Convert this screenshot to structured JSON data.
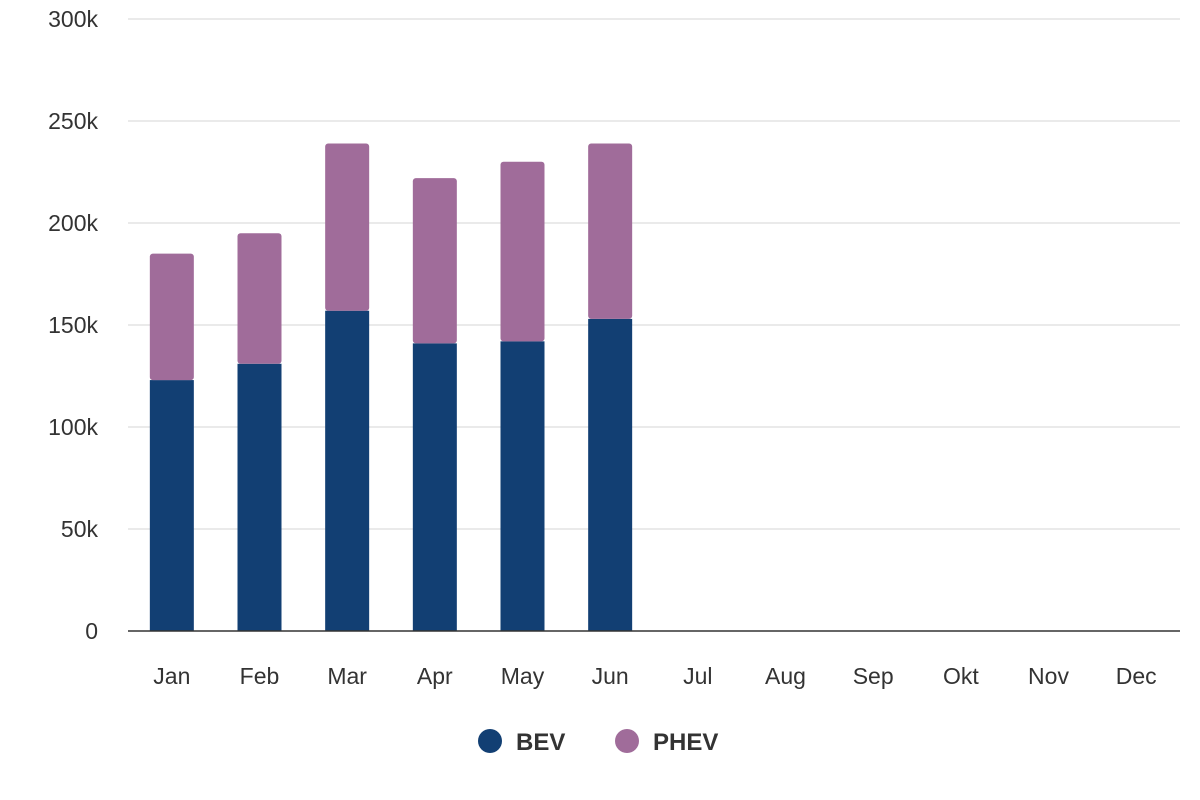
{
  "chart_data": {
    "type": "bar",
    "stacked": true,
    "categories": [
      "Jan",
      "Feb",
      "Mar",
      "Apr",
      "May",
      "Jun",
      "Jul",
      "Aug",
      "Sep",
      "Okt",
      "Nov",
      "Dec"
    ],
    "series": [
      {
        "name": "BEV",
        "color": "#123f73",
        "values": [
          123000,
          131000,
          157000,
          141000,
          142000,
          153000,
          null,
          null,
          null,
          null,
          null,
          null
        ]
      },
      {
        "name": "PHEV",
        "color": "#a06c9a",
        "values": [
          62000,
          64000,
          82000,
          81000,
          88000,
          86000,
          null,
          null,
          null,
          null,
          null,
          null
        ]
      }
    ],
    "ylim": [
      0,
      300000
    ],
    "yticks": [
      0,
      50000,
      100000,
      150000,
      200000,
      250000,
      300000
    ],
    "ytick_labels": [
      "0",
      "50k",
      "100k",
      "150k",
      "200k",
      "250k",
      "300k"
    ],
    "grid": true,
    "legend": "bottom-center"
  }
}
